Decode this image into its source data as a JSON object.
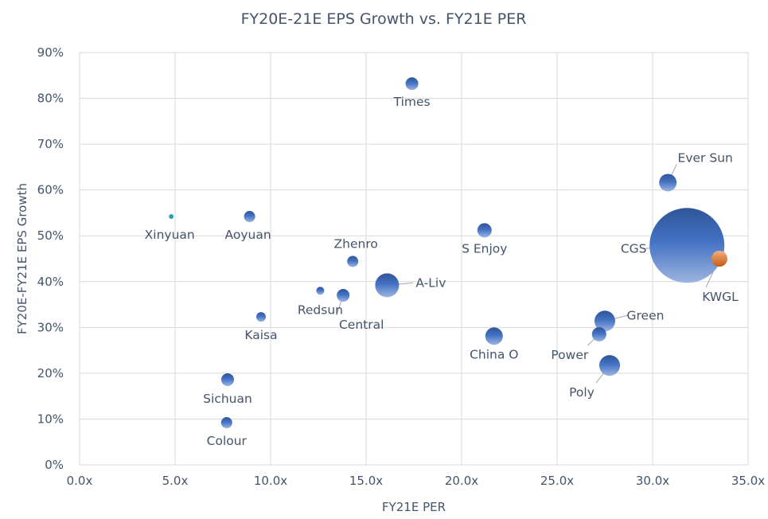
{
  "chart_data": {
    "type": "bubble",
    "title": "FY20E-21E EPS Growth vs. FY21E PER",
    "xlabel": "FY21E PER",
    "ylabel": "FY20E-FY21E EPS Growth",
    "xlim": [
      0,
      35
    ],
    "ylim": [
      0,
      90
    ],
    "x_ticks": [
      "0.0x",
      "5.0x",
      "10.0x",
      "15.0x",
      "20.0x",
      "25.0x",
      "30.0x",
      "35.0x"
    ],
    "y_ticks": [
      "0%",
      "10%",
      "20%",
      "30%",
      "40%",
      "50%",
      "60%",
      "70%",
      "80%",
      "90%"
    ],
    "grid": true,
    "legend": "none",
    "colors": {
      "default": "#4472c4",
      "highlight": "#ed7d31",
      "small": "#2e9fb5"
    },
    "points": [
      {
        "label": "Times",
        "x": 17.4,
        "y": 83.2,
        "size": 64
      },
      {
        "label": "Ever Sun",
        "x": 30.8,
        "y": 61.6,
        "size": 121
      },
      {
        "label": "Xinyuan",
        "x": 4.8,
        "y": 54.2,
        "size": 9
      },
      {
        "label": "Aoyuan",
        "x": 8.9,
        "y": 54.2,
        "size": 49
      },
      {
        "label": "S Enjoy",
        "x": 21.2,
        "y": 51.2,
        "size": 81
      },
      {
        "label": "CGS",
        "x": 31.8,
        "y": 47.9,
        "size": 2209
      },
      {
        "label": "KWGL",
        "x": 33.5,
        "y": 45.0,
        "size": 100,
        "highlight": true
      },
      {
        "label": "Zhenro",
        "x": 14.3,
        "y": 44.4,
        "size": 49
      },
      {
        "label": "A-Liv",
        "x": 16.1,
        "y": 39.2,
        "size": 225
      },
      {
        "label": "Redsun",
        "x": 12.6,
        "y": 38.0,
        "size": 25
      },
      {
        "label": "Central",
        "x": 13.8,
        "y": 37.0,
        "size": 64
      },
      {
        "label": "Kaisa",
        "x": 9.5,
        "y": 32.3,
        "size": 36
      },
      {
        "label": "Green",
        "x": 27.5,
        "y": 31.4,
        "size": 169
      },
      {
        "label": "China O",
        "x": 21.7,
        "y": 28.1,
        "size": 121
      },
      {
        "label": "Power",
        "x": 27.2,
        "y": 28.5,
        "size": 81
      },
      {
        "label": "Poly",
        "x": 27.75,
        "y": 21.7,
        "size": 169
      },
      {
        "label": "Sichuan",
        "x": 7.75,
        "y": 18.6,
        "size": 64
      },
      {
        "label": "Colour",
        "x": 7.7,
        "y": 9.2,
        "size": 49
      }
    ]
  }
}
